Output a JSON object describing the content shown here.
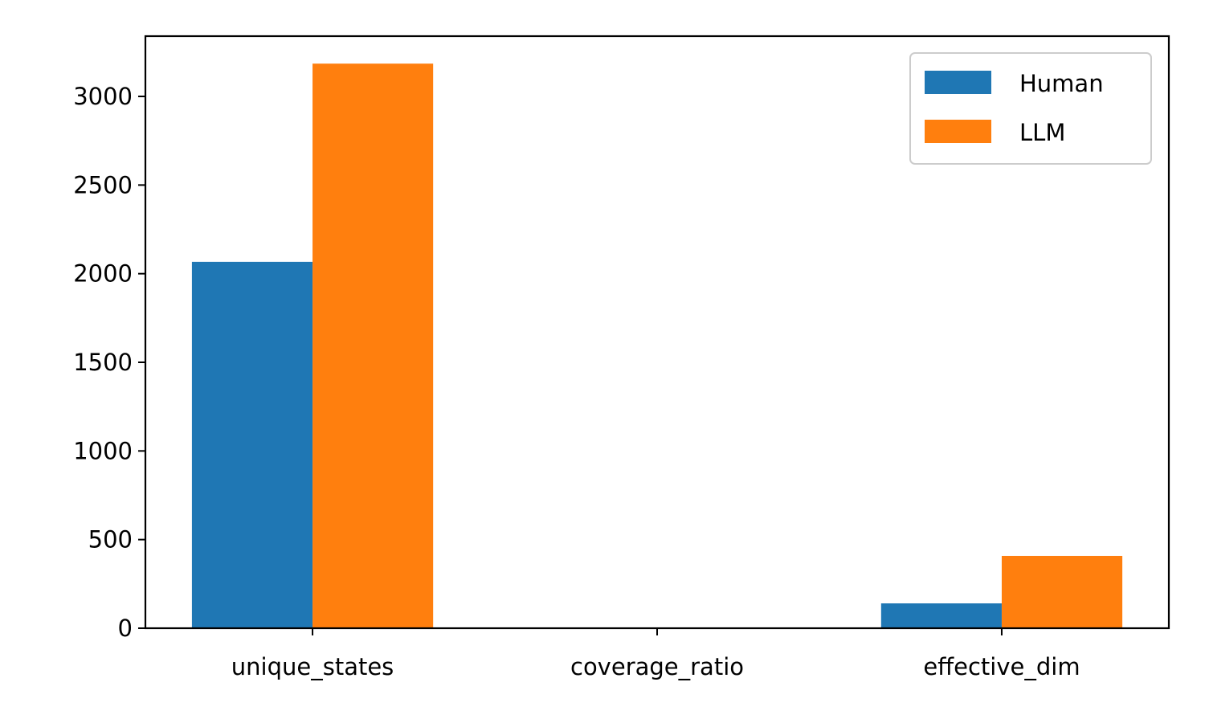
{
  "chart_data": {
    "type": "bar",
    "categories": [
      "unique_states",
      "coverage_ratio",
      "effective_dim"
    ],
    "series": [
      {
        "name": "Human",
        "values": [
          2067,
          0.5,
          140
        ],
        "color": "#1f77b4"
      },
      {
        "name": "LLM",
        "values": [
          3185,
          0.8,
          408
        ],
        "color": "#ff7f0e"
      }
    ],
    "ylim": [
      0,
      3340
    ],
    "yticks": [
      0,
      500,
      1000,
      1500,
      2000,
      2500,
      3000
    ],
    "title": "",
    "xlabel": "",
    "ylabel": "",
    "grid": false,
    "legend_position": "top-right"
  }
}
